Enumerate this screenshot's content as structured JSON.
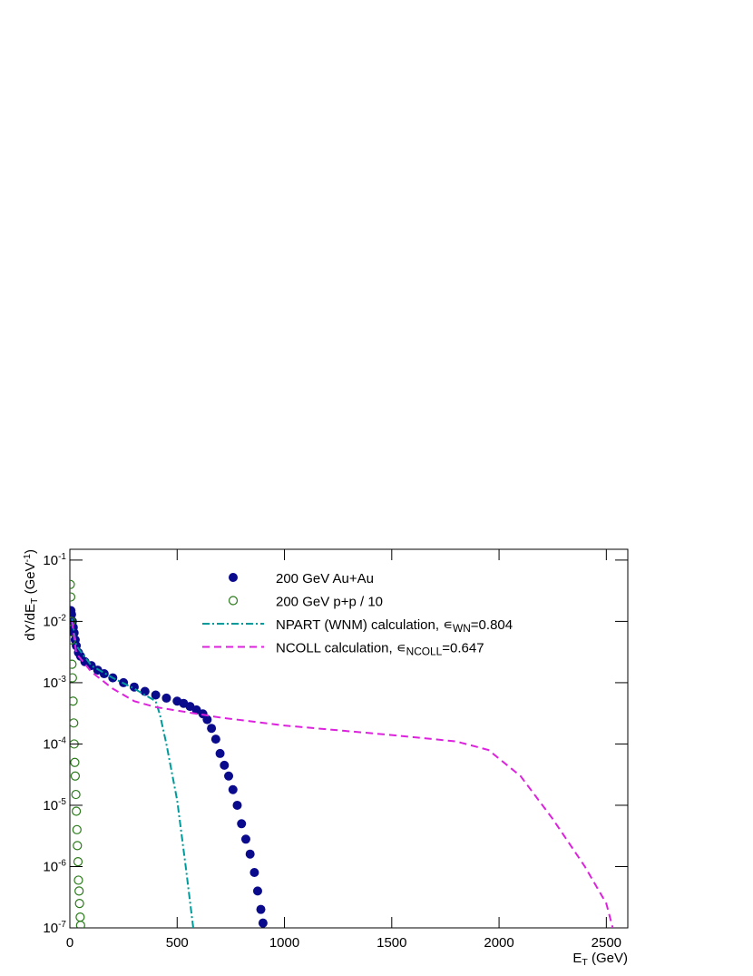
{
  "chart_data": {
    "type": "scatter",
    "y_label": [
      {
        "text": "dY/dE",
        "style": "normal"
      },
      {
        "text": "T",
        "style": "sub"
      },
      {
        "text": " (GeV",
        "style": "normal"
      },
      {
        "text": "-1",
        "style": "super"
      },
      {
        "text": ")",
        "style": "normal"
      }
    ],
    "x_label": [
      {
        "text": "E",
        "style": "normal"
      },
      {
        "text": "T",
        "style": "sub"
      },
      {
        "text": " (GeV)",
        "style": "normal"
      }
    ],
    "xlim": [
      0,
      2600
    ],
    "xticks": [
      0,
      500,
      1000,
      1500,
      2000,
      2500
    ],
    "ylim": [
      1e-07,
      0.15
    ],
    "log_y": true,
    "yticks": [
      {
        "value": 1e-07,
        "label": "10",
        "exponent": "-7"
      },
      {
        "value": 1e-06,
        "label": "10",
        "exponent": "-6"
      },
      {
        "value": 1e-05,
        "label": "10",
        "exponent": "-5"
      },
      {
        "value": 0.0001,
        "label": "10",
        "exponent": "-4"
      },
      {
        "value": 0.001,
        "label": "10",
        "exponent": "-3"
      },
      {
        "value": 0.01,
        "label": "10",
        "exponent": "-2"
      },
      {
        "value": 0.1,
        "label": "10",
        "exponent": "-1"
      }
    ],
    "series": [
      {
        "name": [
          {
            "text": "200 GeV Au+Au",
            "style": "normal"
          }
        ],
        "color": "#0a0a8c",
        "mark": "filled-circle",
        "x": [
          5,
          8,
          12,
          16,
          20,
          25,
          30,
          40,
          50,
          70,
          100,
          130,
          160,
          200,
          250,
          300,
          350,
          400,
          450,
          500,
          530,
          560,
          590,
          620,
          640,
          660,
          680,
          700,
          720,
          740,
          760,
          780,
          800,
          820,
          840,
          860,
          875,
          890,
          900
        ],
        "values": [
          0.015,
          0.013,
          0.01,
          0.008,
          0.0065,
          0.005,
          0.004,
          0.0031,
          0.0027,
          0.0022,
          0.0019,
          0.0016,
          0.0014,
          0.0012,
          0.001,
          0.00085,
          0.00072,
          0.00063,
          0.00056,
          0.0005,
          0.00046,
          0.00041,
          0.00036,
          0.00031,
          0.00025,
          0.00018,
          0.00012,
          7e-05,
          4.5e-05,
          3e-05,
          1.8e-05,
          1e-05,
          5e-06,
          2.8e-06,
          1.6e-06,
          8e-07,
          4e-07,
          2e-07,
          1.2e-07
        ]
      },
      {
        "name": [
          {
            "text": "200 GeV p+p / 10",
            "style": "normal"
          }
        ],
        "color": "#2a7a1a",
        "mark": "open-circle",
        "x": [
          2,
          4,
          6,
          8,
          10,
          12,
          15,
          18,
          20,
          23,
          25,
          28,
          30,
          33,
          35,
          38,
          40,
          43,
          45,
          48,
          50
        ],
        "values": [
          0.04,
          0.025,
          0.01,
          0.005,
          0.002,
          0.0012,
          0.0005,
          0.00022,
          0.0001,
          5e-05,
          3e-05,
          1.5e-05,
          8e-06,
          4e-06,
          2.2e-06,
          1.2e-06,
          6e-07,
          4e-07,
          2.5e-07,
          1.5e-07,
          1.1e-07
        ]
      },
      {
        "name": [
          {
            "text": "NPART (WNM) calculation,  ∊",
            "style": "normal"
          },
          {
            "text": "WN",
            "style": "sub"
          },
          {
            "text": "=0.804",
            "style": "normal"
          }
        ],
        "color": "#009a9a",
        "mark": "dash-dot-line",
        "x": [
          10,
          30,
          100,
          200,
          300,
          400,
          420,
          450,
          500,
          540,
          575
        ],
        "values": [
          0.011,
          0.004,
          0.0019,
          0.0012,
          0.0008,
          0.0005,
          0.0003,
          0.0001,
          1.2e-05,
          1e-06,
          1e-07
        ]
      },
      {
        "name": [
          {
            "text": "NCOLL calculation, ∊",
            "style": "normal"
          },
          {
            "text": "NCOLL",
            "style": "sub"
          },
          {
            "text": "=0.647",
            "style": "normal"
          }
        ],
        "color": "#dd22dd",
        "mark": "dashed-line",
        "x": [
          10,
          30,
          100,
          200,
          300,
          400,
          500,
          700,
          1000,
          1500,
          1800,
          1950,
          2100,
          2250,
          2400,
          2500,
          2530
        ],
        "values": [
          0.01,
          0.003,
          0.0015,
          0.0008,
          0.0005,
          0.0004,
          0.00035,
          0.00027,
          0.0002,
          0.00014,
          0.00011,
          8e-05,
          3e-05,
          6e-06,
          1e-06,
          2.5e-07,
          1e-07
        ]
      }
    ]
  }
}
